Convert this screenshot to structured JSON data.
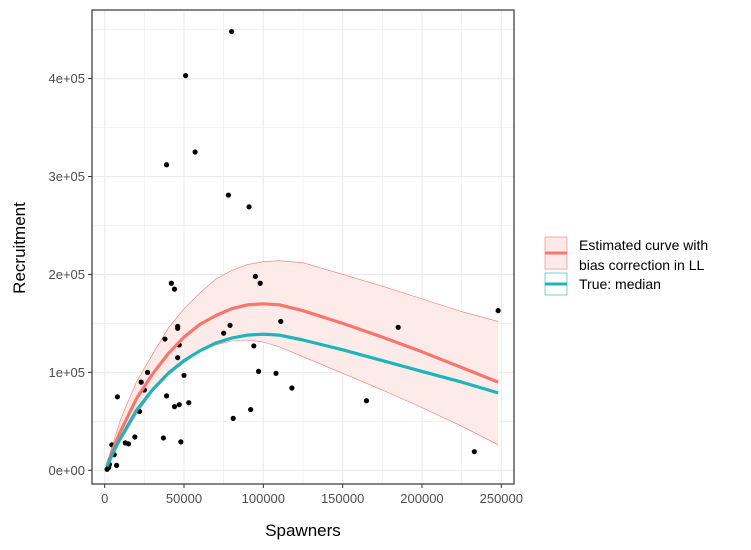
{
  "chart_data": {
    "type": "scatter",
    "xlabel": "Spawners",
    "ylabel": "Recruitment",
    "xlim": [
      -8000,
      258000
    ],
    "ylim": [
      -14000,
      470000
    ],
    "x_ticks": [
      0,
      50000,
      100000,
      150000,
      200000,
      250000
    ],
    "x_tick_labels": [
      "0",
      "50000",
      "100000",
      "150000",
      "200000",
      "250000"
    ],
    "y_ticks": [
      0,
      100000,
      200000,
      300000,
      400000
    ],
    "y_tick_labels": [
      "0e+00",
      "1e+05",
      "2e+05",
      "3e+05",
      "4e+05"
    ],
    "grid": true,
    "legend_position": "right",
    "colors": {
      "estimated": "#F8766D",
      "ribbon_fill": "#FDEBEA",
      "true_median": "#1FB3BA",
      "points": "#000000",
      "grid": "#EBEBEB",
      "panel_border": "#333333"
    },
    "points": [
      {
        "x": 1500,
        "y": 1000
      },
      {
        "x": 2500,
        "y": 3000
      },
      {
        "x": 3000,
        "y": 6000
      },
      {
        "x": 4500,
        "y": 26000
      },
      {
        "x": 6000,
        "y": 16000
      },
      {
        "x": 7500,
        "y": 5000
      },
      {
        "x": 8000,
        "y": 75000
      },
      {
        "x": 13000,
        "y": 28000
      },
      {
        "x": 15000,
        "y": 27000
      },
      {
        "x": 19000,
        "y": 34000
      },
      {
        "x": 22000,
        "y": 60000
      },
      {
        "x": 23000,
        "y": 90000
      },
      {
        "x": 25000,
        "y": 82000
      },
      {
        "x": 27000,
        "y": 100000
      },
      {
        "x": 37000,
        "y": 33000
      },
      {
        "x": 38000,
        "y": 134000
      },
      {
        "x": 39000,
        "y": 76000
      },
      {
        "x": 39000,
        "y": 312000
      },
      {
        "x": 42000,
        "y": 191000
      },
      {
        "x": 44000,
        "y": 185000
      },
      {
        "x": 44000,
        "y": 65000
      },
      {
        "x": 46000,
        "y": 147000
      },
      {
        "x": 46000,
        "y": 145000
      },
      {
        "x": 46000,
        "y": 115000
      },
      {
        "x": 47000,
        "y": 128000
      },
      {
        "x": 47000,
        "y": 67000
      },
      {
        "x": 48000,
        "y": 29000
      },
      {
        "x": 50000,
        "y": 97000
      },
      {
        "x": 51000,
        "y": 403000
      },
      {
        "x": 53000,
        "y": 69000
      },
      {
        "x": 57000,
        "y": 325000
      },
      {
        "x": 75000,
        "y": 140000
      },
      {
        "x": 78000,
        "y": 281000
      },
      {
        "x": 79000,
        "y": 148000
      },
      {
        "x": 80000,
        "y": 448000
      },
      {
        "x": 81000,
        "y": 53000
      },
      {
        "x": 91000,
        "y": 269000
      },
      {
        "x": 92000,
        "y": 62000
      },
      {
        "x": 94000,
        "y": 127000
      },
      {
        "x": 95000,
        "y": 198000
      },
      {
        "x": 97000,
        "y": 101000
      },
      {
        "x": 98000,
        "y": 191000
      },
      {
        "x": 108000,
        "y": 99000
      },
      {
        "x": 111000,
        "y": 152000
      },
      {
        "x": 118000,
        "y": 84000
      },
      {
        "x": 165000,
        "y": 71000
      },
      {
        "x": 185000,
        "y": 146000
      },
      {
        "x": 233000,
        "y": 19000
      },
      {
        "x": 248000,
        "y": 163000
      }
    ],
    "series": [
      {
        "name": "Estimated curve with\nbias correction in LL",
        "label_lines": [
          "Estimated curve with",
          "bias correction in LL"
        ],
        "x": [
          1500,
          5000,
          10000,
          20000,
          30000,
          40000,
          50000,
          60000,
          70000,
          80000,
          90000,
          100000,
          110000,
          125000,
          150000,
          175000,
          200000,
          225000,
          248000
        ],
        "y": [
          5000,
          21000,
          40000,
          73000,
          98000,
          119000,
          136000,
          149000,
          158000,
          165000,
          169000,
          170000,
          169000,
          163000,
          150000,
          136000,
          121000,
          105000,
          90000
        ],
        "lower": [
          3000,
          17000,
          30000,
          57000,
          80000,
          97000,
          110000,
          121000,
          128000,
          132000,
          133000,
          131000,
          126000,
          116000,
          99000,
          82000,
          64000,
          45000,
          26000
        ],
        "upper": [
          7000,
          26000,
          52000,
          90000,
          118000,
          145000,
          165000,
          181000,
          195000,
          204000,
          210000,
          213000,
          214000,
          212000,
          200000,
          188000,
          175000,
          162000,
          152000
        ]
      },
      {
        "name": "True: median",
        "x": [
          1500,
          5000,
          10000,
          20000,
          30000,
          40000,
          50000,
          60000,
          70000,
          80000,
          90000,
          100000,
          110000,
          125000,
          150000,
          175000,
          200000,
          225000,
          248000
        ],
        "y": [
          4000,
          17000,
          33000,
          61000,
          82000,
          99000,
          112000,
          122000,
          130000,
          135000,
          138000,
          139000,
          138000,
          133000,
          123000,
          112000,
          101000,
          90000,
          79000
        ]
      }
    ]
  }
}
